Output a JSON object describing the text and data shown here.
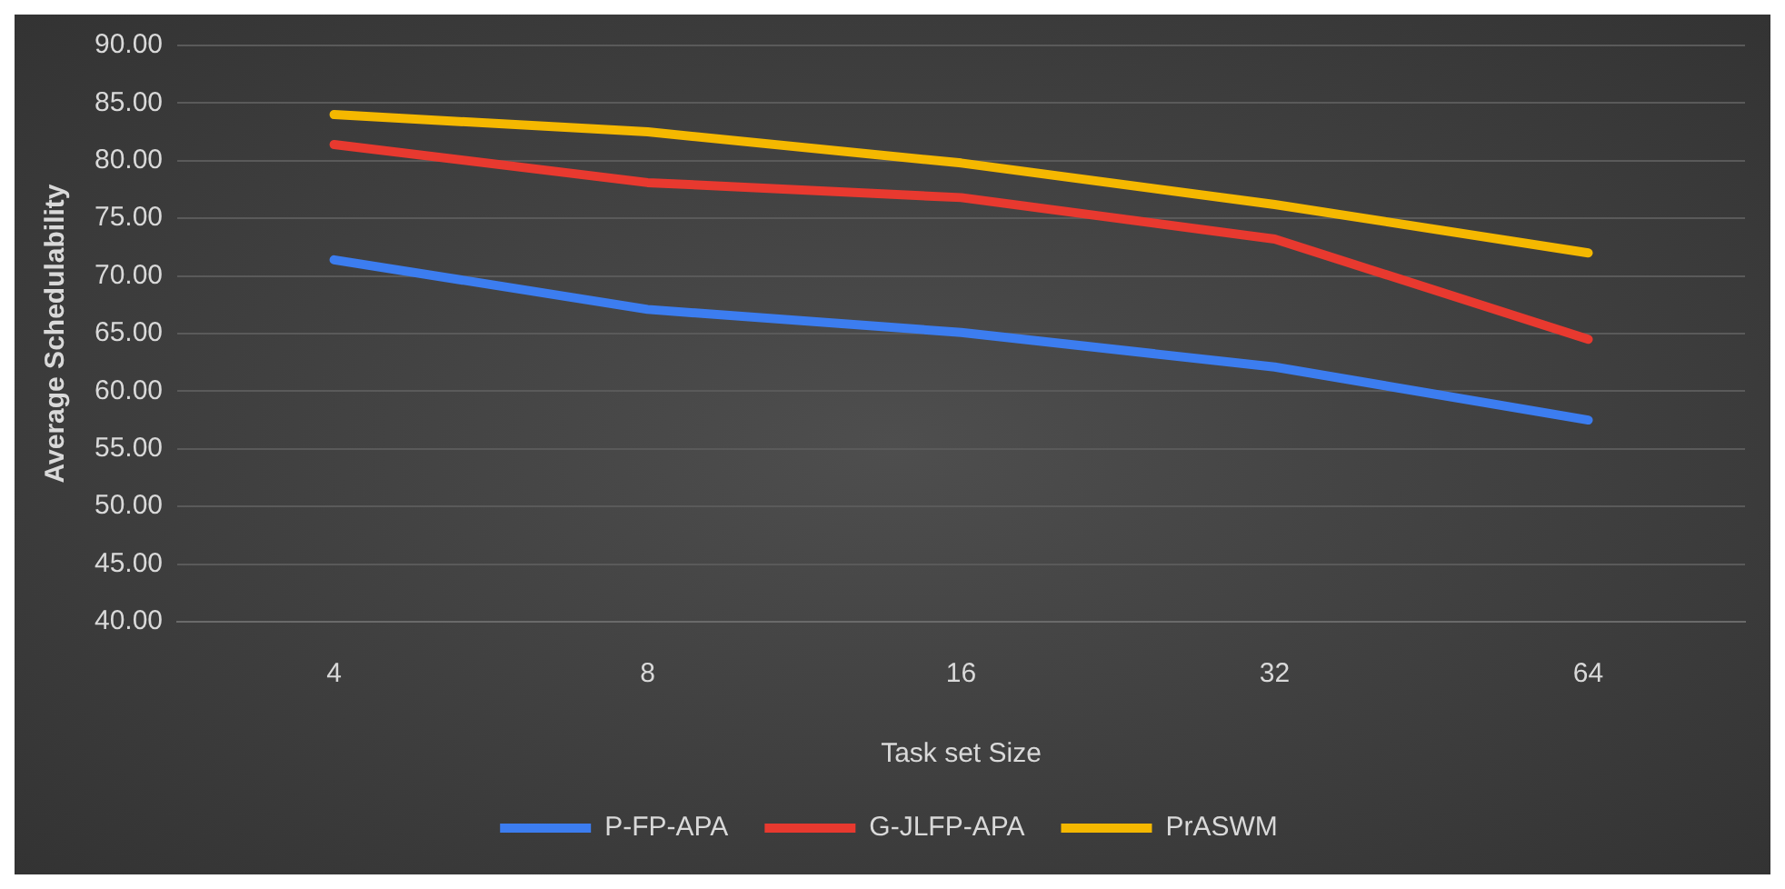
{
  "chart_data": {
    "type": "line",
    "xlabel": "Task set Size",
    "ylabel": "Average Schedulability",
    "categories": [
      "4",
      "8",
      "16",
      "32",
      "64"
    ],
    "series": [
      {
        "name": "P-FP-APA",
        "color": "#3c7df0",
        "values": [
          71.4,
          67.1,
          65.1,
          62.1,
          57.5
        ]
      },
      {
        "name": "G-JLFP-APA",
        "color": "#e8392f",
        "values": [
          81.4,
          78.1,
          76.8,
          73.2,
          64.5
        ]
      },
      {
        "name": "PrASWM",
        "color": "#f5b800",
        "values": [
          84.0,
          82.5,
          79.8,
          76.2,
          72.0
        ]
      }
    ],
    "ylim": [
      40,
      90
    ],
    "yticks": [
      {
        "value": 40,
        "label": "40.00"
      },
      {
        "value": 45,
        "label": "45.00"
      },
      {
        "value": 50,
        "label": "50.00"
      },
      {
        "value": 55,
        "label": "55.00"
      },
      {
        "value": 60,
        "label": "60.00"
      },
      {
        "value": 65,
        "label": "65.00"
      },
      {
        "value": 70,
        "label": "70.00"
      },
      {
        "value": 75,
        "label": "75.00"
      },
      {
        "value": 80,
        "label": "80.00"
      },
      {
        "value": 85,
        "label": "85.00"
      },
      {
        "value": 90,
        "label": "90.00"
      }
    ],
    "grid": "y",
    "legend": "bottom",
    "marker": "none",
    "line_style": "solid"
  }
}
